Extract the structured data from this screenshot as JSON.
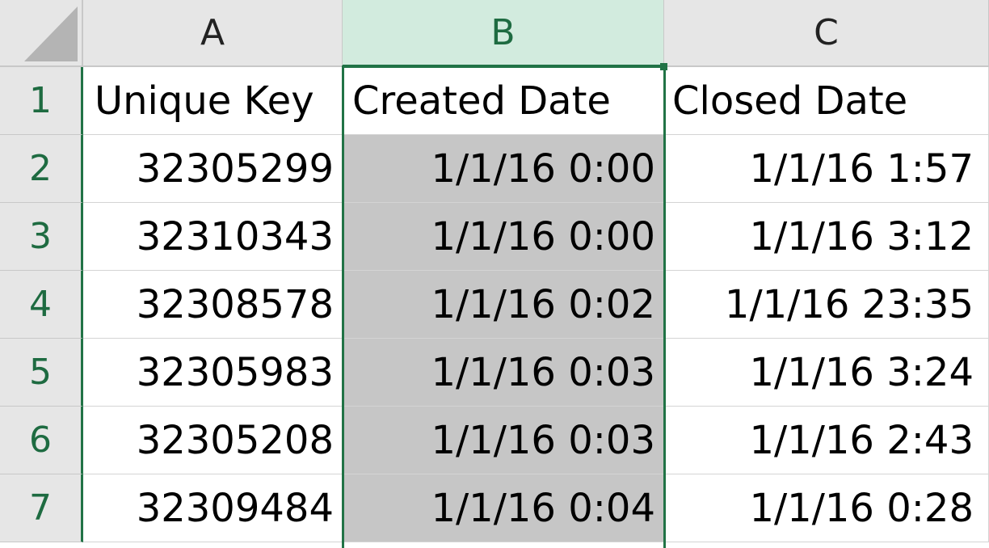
{
  "columns": [
    "A",
    "B",
    "C"
  ],
  "rows": [
    "1",
    "2",
    "3",
    "4",
    "5",
    "6",
    "7"
  ],
  "header_row": {
    "a": "Unique Key",
    "b": "Created Date",
    "c": "Closed Date"
  },
  "data": [
    {
      "a": "32305299",
      "b": "1/1/16 0:00",
      "c": "1/1/16 1:57"
    },
    {
      "a": "32310343",
      "b": "1/1/16 0:00",
      "c": "1/1/16 3:12"
    },
    {
      "a": "32308578",
      "b": "1/1/16 0:02",
      "c": "1/1/16 23:35"
    },
    {
      "a": "32305983",
      "b": "1/1/16 0:03",
      "c": "1/1/16 3:24"
    },
    {
      "a": "32305208",
      "b": "1/1/16 0:03",
      "c": "1/1/16 2:43"
    },
    {
      "a": "32309484",
      "b": "1/1/16 0:04",
      "c": "1/1/16 0:28"
    }
  ],
  "selected_column": "B",
  "colors": {
    "accent": "#217346",
    "selected_header_bg": "#d2ebde",
    "selected_cells_bg": "#c6c6c6"
  }
}
